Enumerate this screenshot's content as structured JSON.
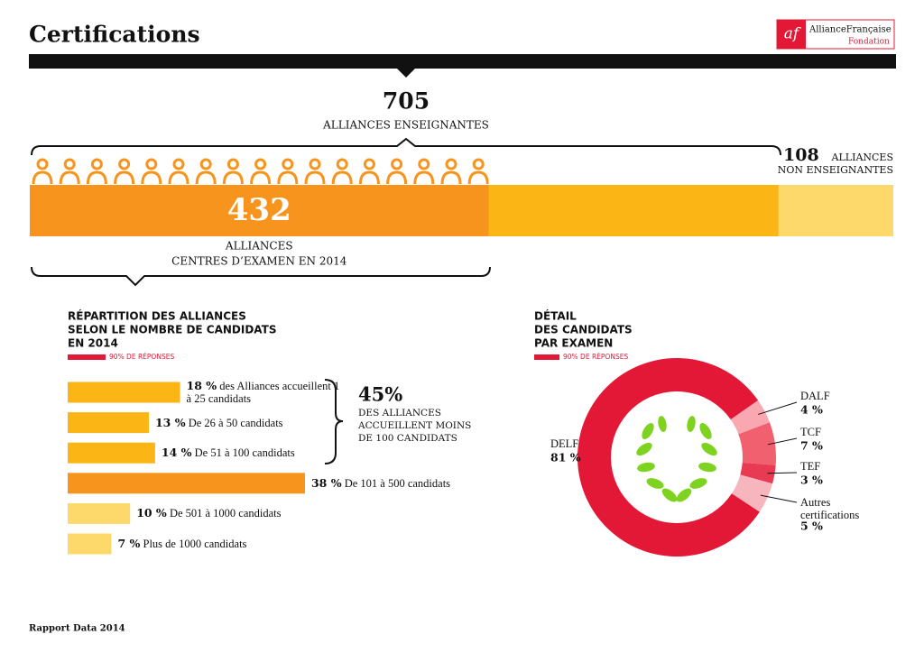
{
  "header": {
    "title": "Certifications",
    "logo_mark": "af",
    "logo_name": "AllianceFrançaise",
    "logo_sub": "Fondation"
  },
  "chart_data": [
    {
      "type": "proportion-bar",
      "segments": [
        {
          "name": [
            "ALLIANCES ENSEIGNANTES"
          ],
          "color": "#fbb615",
          "value": 705
        },
        {
          "name": [
            "ALLIANCES",
            "CENTRES D’EXAMEN EN 2014"
          ],
          "color": "#f7941d",
          "value": 432
        },
        {
          "name": [
            "ALLIANCES",
            "NON ENSEIGNANTES"
          ],
          "color": "#fdd96b",
          "value": 108
        }
      ]
    },
    {
      "type": "bar",
      "title": [
        "RÉPARTITION DES ALLIANCES",
        "SELON LE NOMBRE DE CANDIDATS",
        "EN 2014"
      ],
      "note": "90% DE RÉPONSES",
      "categories": [
        "des Alliances accueillent 1 à 25 candidats",
        "De 26 à 50 candidats",
        "De 51 à 100 candidats",
        "De 101 à 500 candidats",
        "De 501 à 1000 candidats",
        "Plus de 1000 candidats"
      ],
      "values": [
        18,
        13,
        14,
        38,
        10,
        7
      ],
      "value_labels": [
        "18 %",
        "13 %",
        "14 %",
        "38 %",
        "10 %",
        "7 %"
      ],
      "colors": [
        "#fbb615",
        "#fbb615",
        "#fbb615",
        "#f7941d",
        "#fdd96b",
        "#fdd96b"
      ],
      "annotation": {
        "headline": "45%",
        "text": [
          "DES ALLIANCES",
          "ACCUEILLENT MOINS",
          "DE 100 CANDIDATS"
        ]
      }
    },
    {
      "type": "donut",
      "title": [
        "DÉTAIL",
        "DES CANDIDATS",
        "PAR EXAMEN"
      ],
      "note": "90% DE RÉPONSES",
      "categories": [
        "DELF",
        "DALF",
        "TCF",
        "TEF",
        "Autres certifications"
      ],
      "values": [
        81,
        4,
        7,
        3,
        5
      ],
      "value_labels": [
        "81 %",
        "4 %",
        "7 %",
        "3 %",
        "5 %"
      ],
      "colors": [
        "#e31837",
        "#f9a8b1",
        "#f0606f",
        "#e83a52",
        "#f7b5bd"
      ]
    }
  ],
  "footer": "Rapport Data 2014"
}
